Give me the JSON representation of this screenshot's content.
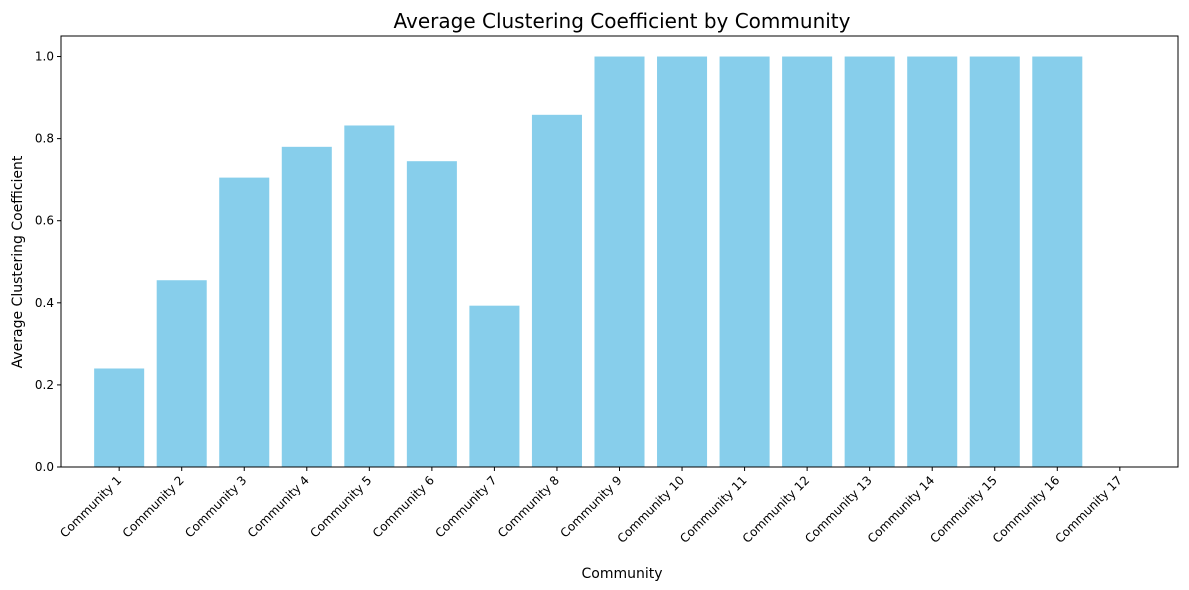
{
  "chart_data": {
    "type": "bar",
    "title": "Average Clustering Coefficient by Community",
    "xlabel": "Community",
    "ylabel": "Average Clustering Coefficient",
    "categories": [
      "Community 1",
      "Community 2",
      "Community 3",
      "Community 4",
      "Community 5",
      "Community 6",
      "Community 7",
      "Community 8",
      "Community 9",
      "Community 10",
      "Community 11",
      "Community 12",
      "Community 13",
      "Community 14",
      "Community 15",
      "Community 16",
      "Community 17"
    ],
    "values": [
      0.24,
      0.455,
      0.705,
      0.78,
      0.832,
      0.745,
      0.393,
      0.858,
      1.0,
      1.0,
      1.0,
      1.0,
      1.0,
      1.0,
      1.0,
      1.0,
      0.0
    ],
    "ylim": [
      0,
      1.05
    ],
    "yticks": [
      0.0,
      0.2,
      0.4,
      0.6,
      0.8,
      1.0
    ],
    "ytick_labels": [
      "0.0",
      "0.2",
      "0.4",
      "0.6",
      "0.8",
      "1.0"
    ],
    "grid": false,
    "color": "#87CEEB"
  }
}
